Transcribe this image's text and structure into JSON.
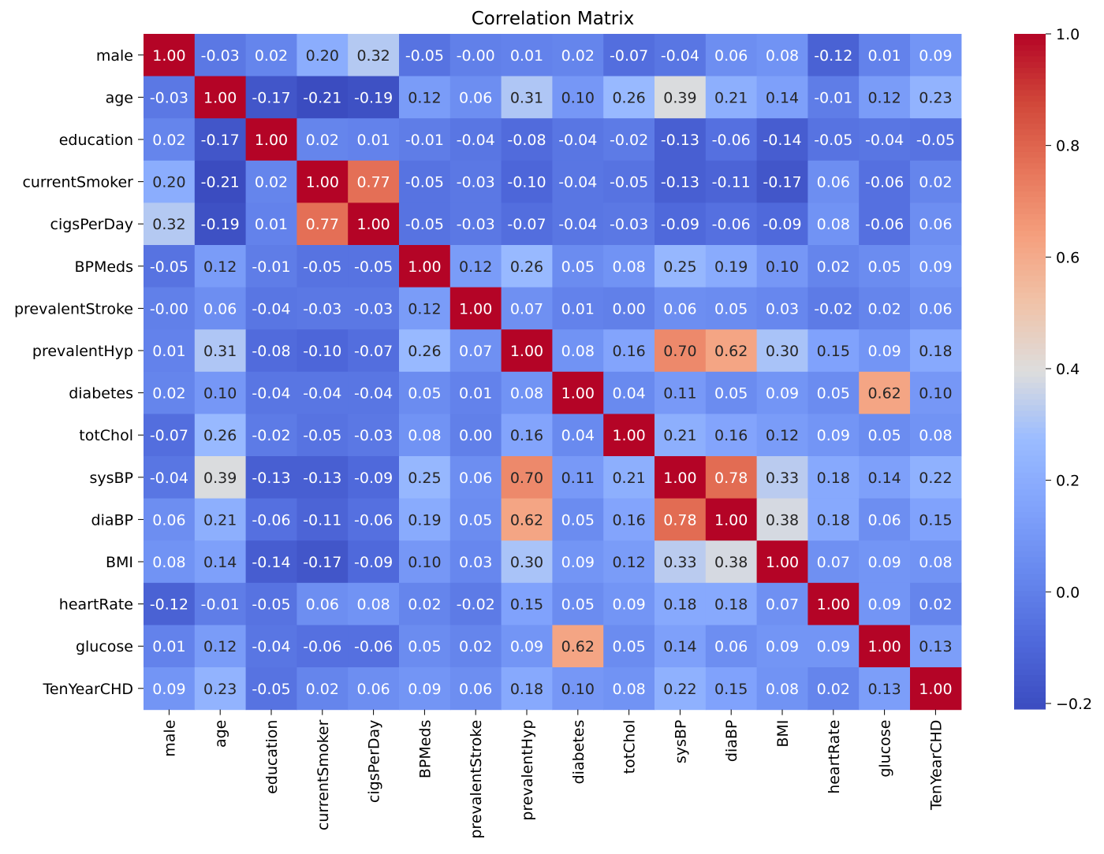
{
  "chart_data": {
    "type": "heatmap",
    "title": "Correlation Matrix",
    "row_labels": [
      "male",
      "age",
      "education",
      "currentSmoker",
      "cigsPerDay",
      "BPMeds",
      "prevalentStroke",
      "prevalentHyp",
      "diabetes",
      "totChol",
      "sysBP",
      "diaBP",
      "BMI",
      "heartRate",
      "glucose",
      "TenYearCHD"
    ],
    "col_labels": [
      "male",
      "age",
      "education",
      "currentSmoker",
      "cigsPerDay",
      "BPMeds",
      "prevalentStroke",
      "prevalentHyp",
      "diabetes",
      "totChol",
      "sysBP",
      "diaBP",
      "BMI",
      "heartRate",
      "glucose",
      "TenYearCHD"
    ],
    "values": [
      [
        1.0,
        -0.03,
        0.02,
        0.2,
        0.32,
        -0.05,
        -0.0,
        0.01,
        0.02,
        -0.07,
        -0.04,
        0.06,
        0.08,
        -0.12,
        0.01,
        0.09
      ],
      [
        -0.03,
        1.0,
        -0.17,
        -0.21,
        -0.19,
        0.12,
        0.06,
        0.31,
        0.1,
        0.26,
        0.39,
        0.21,
        0.14,
        -0.01,
        0.12,
        0.23
      ],
      [
        0.02,
        -0.17,
        1.0,
        0.02,
        0.01,
        -0.01,
        -0.04,
        -0.08,
        -0.04,
        -0.02,
        -0.13,
        -0.06,
        -0.14,
        -0.05,
        -0.04,
        -0.05
      ],
      [
        0.2,
        -0.21,
        0.02,
        1.0,
        0.77,
        -0.05,
        -0.03,
        -0.1,
        -0.04,
        -0.05,
        -0.13,
        -0.11,
        -0.17,
        0.06,
        -0.06,
        0.02
      ],
      [
        0.32,
        -0.19,
        0.01,
        0.77,
        1.0,
        -0.05,
        -0.03,
        -0.07,
        -0.04,
        -0.03,
        -0.09,
        -0.06,
        -0.09,
        0.08,
        -0.06,
        0.06
      ],
      [
        -0.05,
        0.12,
        -0.01,
        -0.05,
        -0.05,
        1.0,
        0.12,
        0.26,
        0.05,
        0.08,
        0.25,
        0.19,
        0.1,
        0.02,
        0.05,
        0.09
      ],
      [
        -0.0,
        0.06,
        -0.04,
        -0.03,
        -0.03,
        0.12,
        1.0,
        0.07,
        0.01,
        0.0,
        0.06,
        0.05,
        0.03,
        -0.02,
        0.02,
        0.06
      ],
      [
        0.01,
        0.31,
        -0.08,
        -0.1,
        -0.07,
        0.26,
        0.07,
        1.0,
        0.08,
        0.16,
        0.7,
        0.62,
        0.3,
        0.15,
        0.09,
        0.18
      ],
      [
        0.02,
        0.1,
        -0.04,
        -0.04,
        -0.04,
        0.05,
        0.01,
        0.08,
        1.0,
        0.04,
        0.11,
        0.05,
        0.09,
        0.05,
        0.62,
        0.1
      ],
      [
        -0.07,
        0.26,
        -0.02,
        -0.05,
        -0.03,
        0.08,
        0.0,
        0.16,
        0.04,
        1.0,
        0.21,
        0.16,
        0.12,
        0.09,
        0.05,
        0.08
      ],
      [
        -0.04,
        0.39,
        -0.13,
        -0.13,
        -0.09,
        0.25,
        0.06,
        0.7,
        0.11,
        0.21,
        1.0,
        0.78,
        0.33,
        0.18,
        0.14,
        0.22
      ],
      [
        0.06,
        0.21,
        -0.06,
        -0.11,
        -0.06,
        0.19,
        0.05,
        0.62,
        0.05,
        0.16,
        0.78,
        1.0,
        0.38,
        0.18,
        0.06,
        0.15
      ],
      [
        0.08,
        0.14,
        -0.14,
        -0.17,
        -0.09,
        0.1,
        0.03,
        0.3,
        0.09,
        0.12,
        0.33,
        0.38,
        1.0,
        0.07,
        0.09,
        0.08
      ],
      [
        -0.12,
        -0.01,
        -0.05,
        0.06,
        0.08,
        0.02,
        -0.02,
        0.15,
        0.05,
        0.09,
        0.18,
        0.18,
        0.07,
        1.0,
        0.09,
        0.02
      ],
      [
        0.01,
        0.12,
        -0.04,
        -0.06,
        -0.06,
        0.05,
        0.02,
        0.09,
        0.62,
        0.05,
        0.14,
        0.06,
        0.09,
        0.09,
        1.0,
        0.13
      ],
      [
        0.09,
        0.23,
        -0.05,
        0.02,
        0.06,
        0.09,
        0.06,
        0.18,
        0.1,
        0.08,
        0.22,
        0.15,
        0.08,
        0.02,
        0.13,
        1.0
      ]
    ],
    "cell_label_format": "0.00",
    "colormap": "coolwarm",
    "vmin": -0.21,
    "vmax": 1.0,
    "colorbar_ticks": [
      -0.2,
      0.0,
      0.2,
      0.4,
      0.6,
      0.8,
      1.0
    ],
    "colorbar_tick_labels": [
      "−0.2",
      "0.0",
      "0.2",
      "0.4",
      "0.6",
      "0.8",
      "1.0"
    ],
    "legend_position": "right"
  }
}
